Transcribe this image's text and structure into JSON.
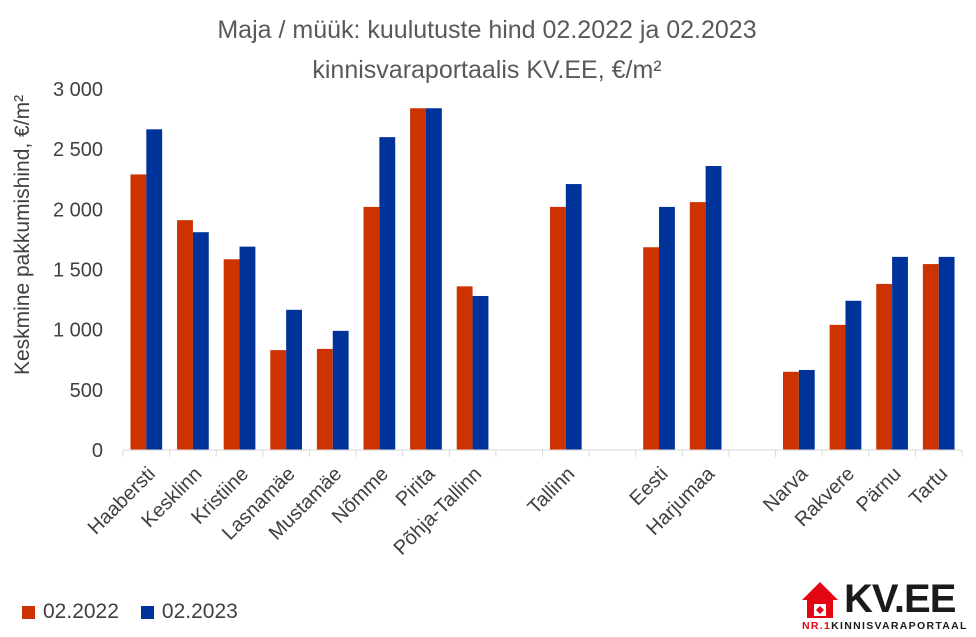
{
  "chart_data": {
    "type": "bar",
    "title_line1": "Maja / müük: kuulutuste hind 02.2022 ja 02.2023",
    "title_line2": "kinnisvaraportaalis KV.EE, €/m²",
    "ylabel": "Keskmine pakkumishind, €/m²",
    "ylim": [
      0,
      3000
    ],
    "yticks": [
      0,
      500,
      1000,
      1500,
      2000,
      2500,
      3000
    ],
    "ytick_labels": [
      "0",
      "500",
      "1 000",
      "1 500",
      "2 000",
      "2 500",
      "3 000"
    ],
    "grid": false,
    "legend_position": "bottom-left",
    "categories": [
      "Haabersti",
      "Kesklinn",
      "Kristiine",
      "Lasnamäe",
      "Mustamäe",
      "Nõmme",
      "Pirita",
      "Põhja-Tallinn",
      "",
      "Tallinn",
      "",
      "Eesti",
      "Harjumaa",
      "",
      "Narva",
      "Rakvere",
      "Pärnu",
      "Tartu"
    ],
    "series": [
      {
        "name": "02.2022",
        "color": "#CC3300",
        "values": [
          2290,
          1910,
          1585,
          830,
          840,
          2020,
          2840,
          1360,
          null,
          2020,
          null,
          1685,
          2060,
          null,
          650,
          1040,
          1380,
          1545
        ]
      },
      {
        "name": "02.2023",
        "color": "#003399",
        "values": [
          2665,
          1810,
          1690,
          1165,
          990,
          2600,
          2840,
          1280,
          null,
          2210,
          null,
          2020,
          2360,
          null,
          665,
          1240,
          1605,
          1605
        ]
      }
    ]
  },
  "logo": {
    "brand": "KV.EE",
    "tagline_prefix": "NR.1",
    "tagline_rest": "KINNISVARAPORTAAL",
    "accent": "#E30613"
  }
}
